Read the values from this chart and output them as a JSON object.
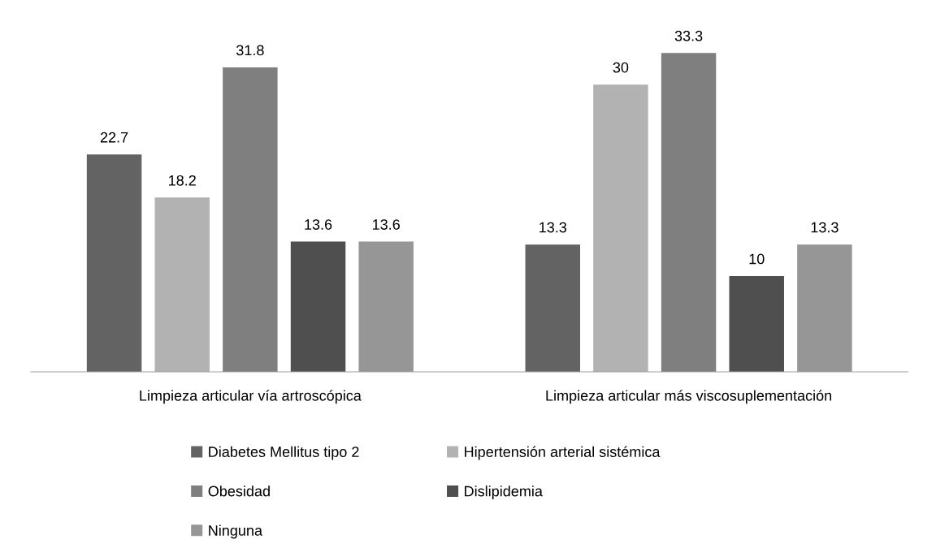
{
  "chart_data": {
    "type": "bar",
    "categories": [
      "Limpieza articular vía artroscópica",
      "Limpieza articular más viscosuplementación"
    ],
    "series": [
      {
        "name": "Diabetes Mellitus tipo 2",
        "color": "#636363",
        "values": [
          22.7,
          13.3
        ]
      },
      {
        "name": "Hipertensión arterial sistémica",
        "color": "#b2b2b2",
        "values": [
          18.2,
          30
        ]
      },
      {
        "name": "Obesidad",
        "color": "#7f7f7f",
        "values": [
          31.8,
          33.3
        ]
      },
      {
        "name": "Dislipidemia",
        "color": "#4f4f4f",
        "values": [
          13.6,
          10
        ]
      },
      {
        "name": "Ninguna",
        "color": "#969696",
        "values": [
          13.6,
          13.3
        ]
      }
    ],
    "data_labels": true,
    "legend": "bottom",
    "grid": false
  }
}
